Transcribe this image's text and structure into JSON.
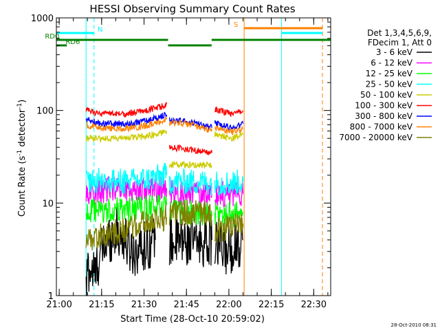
{
  "chart_data": {
    "type": "line",
    "title": "HESSI Observing Summary Count Rates",
    "xlabel": "Start Time (28-Oct-10 20:59:02)",
    "ylabel": "Count Rate (s",
    "ylabel_sup": "-1",
    "ylabel_mid": " detector",
    "ylabel_end": ")",
    "y_scale": "log",
    "ylim": [
      1,
      1000
    ],
    "xlim_min": [
      0,
      97
    ],
    "y_ticks": [
      {
        "value": 1,
        "label": "1"
      },
      {
        "value": 10,
        "label": "10"
      },
      {
        "value": 100,
        "label": "100"
      },
      {
        "value": 1000,
        "label": "1000"
      }
    ],
    "x_ticks": [
      {
        "min": 1,
        "label": "21:00"
      },
      {
        "min": 16,
        "label": "21:15"
      },
      {
        "min": 31,
        "label": "21:30"
      },
      {
        "min": 46,
        "label": "21:45"
      },
      {
        "min": 61,
        "label": "22:00"
      },
      {
        "min": 76,
        "label": "22:15"
      },
      {
        "min": 91,
        "label": "22:30"
      }
    ],
    "legend_header": [
      "Det 1,3,4,5,6,9,",
      "FDecim 1, Att 0"
    ],
    "series": [
      {
        "name": "3 - 6 keV",
        "color": "#000000",
        "segments": [
          [
            [
              10.5,
              1
            ],
            [
              11,
              2
            ],
            [
              14,
              1.7
            ],
            [
              14.5,
              2.2
            ],
            [
              16,
              3
            ],
            [
              18,
              4
            ],
            [
              21,
              5
            ],
            [
              24,
              4
            ],
            [
              27,
              3
            ],
            [
              31,
              3.5
            ],
            [
              35,
              4
            ]
          ],
          [
            [
              40,
              4
            ],
            [
              43,
              3.8
            ],
            [
              47,
              4
            ],
            [
              51,
              3.8
            ],
            [
              55,
              4
            ]
          ],
          [
            [
              56,
              3.5
            ],
            [
              60,
              3
            ],
            [
              63,
              3.5
            ],
            [
              66,
              4
            ]
          ]
        ]
      },
      {
        "name": "6 - 12 keV",
        "color": "#ff00ff",
        "segments": [
          [
            [
              10.5,
              13
            ],
            [
              16,
              13
            ],
            [
              21,
              15
            ],
            [
              26,
              14
            ],
            [
              31,
              14
            ],
            [
              36,
              14
            ],
            [
              39,
              14.5
            ]
          ],
          [
            [
              40,
              13
            ],
            [
              47,
              13
            ],
            [
              55,
              12.5
            ]
          ],
          [
            [
              56,
              12.5
            ],
            [
              62,
              12.5
            ],
            [
              66,
              12.5
            ]
          ]
        ]
      },
      {
        "name": "12 - 25 keV",
        "color": "#00ff00",
        "segments": [
          [
            [
              10.5,
              8
            ],
            [
              16,
              8
            ],
            [
              22,
              8.5
            ],
            [
              28,
              8.5
            ],
            [
              34,
              9
            ],
            [
              39,
              9.5
            ]
          ],
          [
            [
              40,
              8
            ],
            [
              47,
              8
            ],
            [
              55,
              7.5
            ]
          ],
          [
            [
              56,
              7.5
            ],
            [
              62,
              7.5
            ],
            [
              66,
              8
            ]
          ]
        ]
      },
      {
        "name": "25 - 50 keV",
        "color": "#00ffff",
        "segments": [
          [
            [
              10.5,
              18
            ],
            [
              16,
              17.5
            ],
            [
              24,
              17
            ],
            [
              32,
              18
            ],
            [
              39,
              20
            ]
          ],
          [
            [
              40,
              17
            ],
            [
              47,
              17
            ],
            [
              55,
              16.5
            ]
          ],
          [
            [
              56,
              16.5
            ],
            [
              62,
              16.5
            ],
            [
              66,
              17
            ]
          ]
        ]
      },
      {
        "name": "50 - 100 keV",
        "color": "#cccc00",
        "segments": [
          [
            [
              10.5,
              50
            ],
            [
              16,
              50
            ],
            [
              24,
              50
            ],
            [
              30,
              52
            ],
            [
              36,
              56
            ],
            [
              39,
              60
            ]
          ],
          [
            [
              40,
              26
            ],
            [
              47,
              26
            ],
            [
              55,
              25.5
            ]
          ],
          [
            [
              56,
              55
            ],
            [
              62,
              50
            ],
            [
              66,
              55
            ]
          ]
        ]
      },
      {
        "name": "100 - 300 keV",
        "color": "#ff0000",
        "segments": [
          [
            [
              10.5,
              100
            ],
            [
              16,
              92
            ],
            [
              24,
              92
            ],
            [
              30,
              97
            ],
            [
              36,
              108
            ],
            [
              39,
              117
            ]
          ],
          [
            [
              40,
              40
            ],
            [
              47,
              38
            ],
            [
              55,
              35
            ]
          ],
          [
            [
              56,
              103
            ],
            [
              62,
              92
            ],
            [
              66,
              100
            ]
          ]
        ]
      },
      {
        "name": "300 - 800 keV",
        "color": "#0000ff",
        "segments": [
          [
            [
              10.5,
              80
            ],
            [
              16,
              72
            ],
            [
              24,
              72
            ],
            [
              30,
              75
            ],
            [
              36,
              84
            ],
            [
              39,
              90
            ]
          ],
          [
            [
              40,
              78
            ],
            [
              47,
              75
            ],
            [
              55,
              65
            ]
          ],
          [
            [
              56,
              72
            ],
            [
              62,
              65
            ],
            [
              66,
              72
            ]
          ]
        ]
      },
      {
        "name": "800 - 7000 keV",
        "color": "#ff8000",
        "segments": [
          [
            [
              10.5,
              70
            ],
            [
              16,
              64
            ],
            [
              24,
              64
            ],
            [
              30,
              67
            ],
            [
              36,
              74
            ],
            [
              39,
              80
            ]
          ],
          [
            [
              40,
              73
            ],
            [
              47,
              72
            ],
            [
              55,
              60
            ]
          ],
          [
            [
              56,
              65
            ],
            [
              62,
              58
            ],
            [
              66,
              63
            ]
          ]
        ]
      },
      {
        "name": "7000 - 20000 keV",
        "color": "#808000",
        "segments": [
          [
            [
              10.5,
              4
            ],
            [
              16,
              4.5
            ],
            [
              22,
              5
            ],
            [
              28,
              5.5
            ],
            [
              34,
              6.5
            ],
            [
              39,
              7
            ]
          ],
          [
            [
              40,
              7.5
            ],
            [
              47,
              8
            ],
            [
              55,
              7.5
            ]
          ],
          [
            [
              56,
              5
            ],
            [
              62,
              5.5
            ],
            [
              66,
              6
            ]
          ]
        ]
      }
    ],
    "vertical_markers": [
      {
        "min": 0,
        "color": "#00ffff",
        "dash": false
      },
      {
        "min": 10.5,
        "color": "#00ffff",
        "dash": false
      },
      {
        "min": 13.3,
        "color": "#00ffff",
        "dash": true
      },
      {
        "min": 66.4,
        "color": "#ff8000",
        "dash": false
      },
      {
        "min": 79.6,
        "color": "#00ffff",
        "dash": false
      },
      {
        "min": 94.1,
        "color": "#ff8000",
        "dash": true
      }
    ],
    "flag_bars": [
      {
        "label": "N",
        "label_color": "#00ffff",
        "color": "#00ffff",
        "y": 48,
        "ranges": [
          [
            0,
            13.3
          ]
        ],
        "label_min": 15.5
      },
      {
        "label": "S",
        "label_color": "#ff8000",
        "color": "#ff8000",
        "y": 41,
        "ranges": [
          [
            66.4,
            94.1
          ]
        ],
        "label_min": 63.5
      },
      {
        "label": "",
        "label_color": "#00ffff",
        "color": "#00ffff",
        "y": 48,
        "ranges": [
          [
            79.6,
            94.1
          ]
        ],
        "label_min": null
      },
      {
        "label": "RD0",
        "label_color": "#008000",
        "color": "#008000",
        "y": 58,
        "ranges": [
          [
            0,
            39.5
          ],
          [
            54.9,
            97
          ]
        ],
        "label_min": -1.5
      },
      {
        "label": "RD6",
        "label_color": "#008000",
        "color": "#008000",
        "y": 66,
        "ranges": [
          [
            0,
            3.7
          ],
          [
            39.5,
            54.9
          ]
        ],
        "label_min": 5.8
      }
    ],
    "footer_timestamp": "28-Oct-2010 08:31"
  }
}
